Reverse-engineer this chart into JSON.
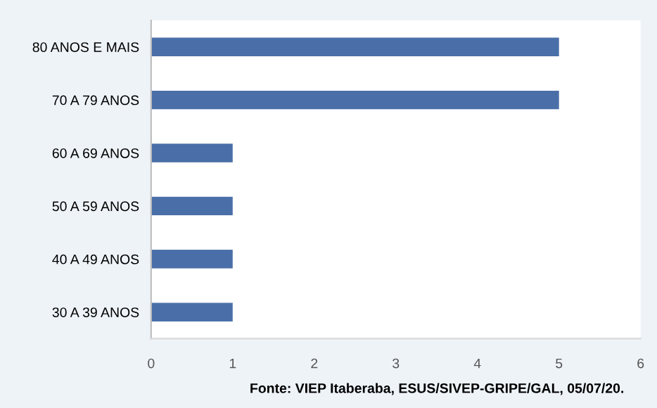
{
  "chart_data": {
    "type": "bar",
    "orientation": "horizontal",
    "categories": [
      "80 ANOS E MAIS",
      "70 A 79 ANOS",
      "60 A 69 ANOS",
      "50 A 59 ANOS",
      "40 A 49 ANOS",
      "30 A 39 ANOS"
    ],
    "values": [
      5,
      5,
      1,
      1,
      1,
      1
    ],
    "color": "#4a6fa8",
    "xlim": [
      0,
      6
    ],
    "xticks": [
      0,
      1,
      2,
      3,
      4,
      5,
      6
    ],
    "grid": false,
    "annotations": [
      "Fonte: VIEP Itaberaba, ESUS/SIVEP-GRIPE/GAL, 05/07/20."
    ]
  }
}
